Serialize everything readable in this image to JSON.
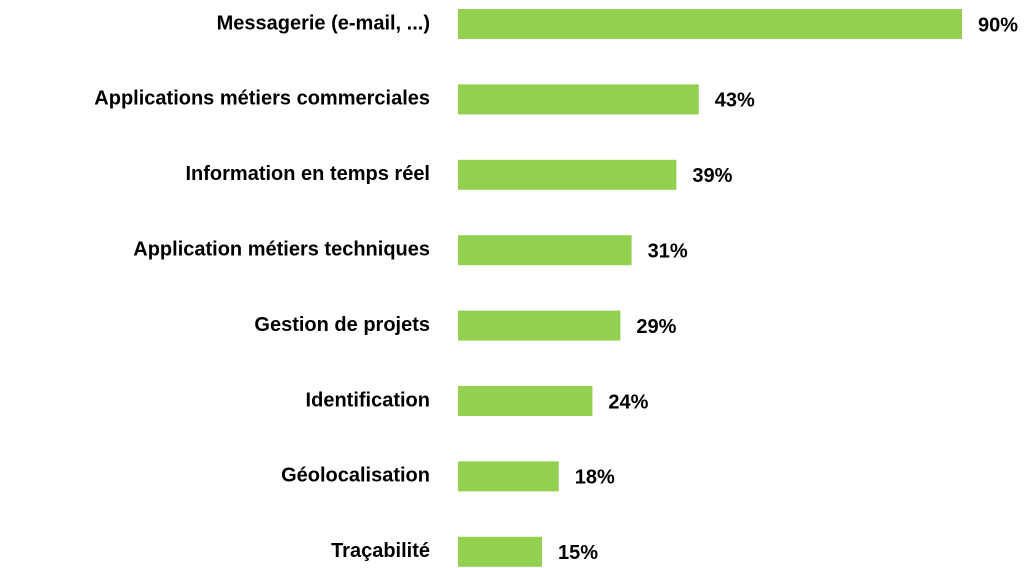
{
  "chart_data": {
    "type": "bar",
    "orientation": "horizontal",
    "categories": [
      "Messagerie (e-mail, ...)",
      "Applications métiers commerciales",
      "Information en temps réel",
      "Application métiers techniques",
      "Gestion de projets",
      "Identification",
      "Géolocalisation",
      "Traçabilité"
    ],
    "values": [
      90,
      43,
      39,
      31,
      29,
      24,
      18,
      15
    ],
    "value_labels": [
      "90%",
      "43%",
      "39%",
      "31%",
      "29%",
      "24%",
      "18%",
      "15%"
    ],
    "color": "#92d050"
  }
}
